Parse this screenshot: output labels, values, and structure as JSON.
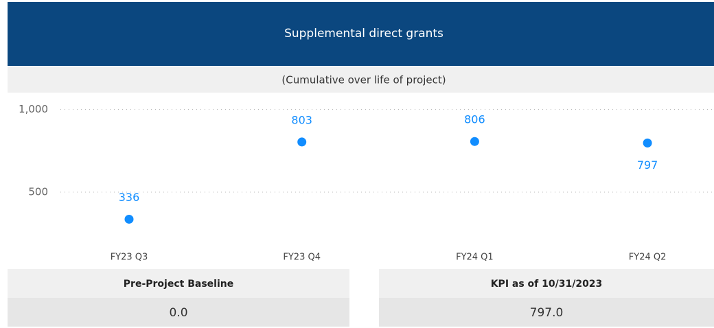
{
  "chart_data": {
    "type": "dot",
    "title": "Supplemental direct grants",
    "subtitle": "(Cumulative over life of project)",
    "categories": [
      "FY23 Q3",
      "FY23 Q4",
      "FY24 Q1",
      "FY24 Q2"
    ],
    "values": [
      336,
      803,
      806,
      797
    ],
    "value_label_positions": [
      "above",
      "above",
      "above",
      "below"
    ],
    "color": "#118dff",
    "ylim": [
      230,
      1060
    ],
    "yticks": [
      500,
      {
        "value": 1000,
        "label": "1,000"
      }
    ],
    "grid": true
  },
  "cards": [
    {
      "label": "Pre-Project Baseline",
      "value": "0.0"
    },
    {
      "label": "KPI as of 10/31/2023",
      "value": "797.0"
    }
  ]
}
